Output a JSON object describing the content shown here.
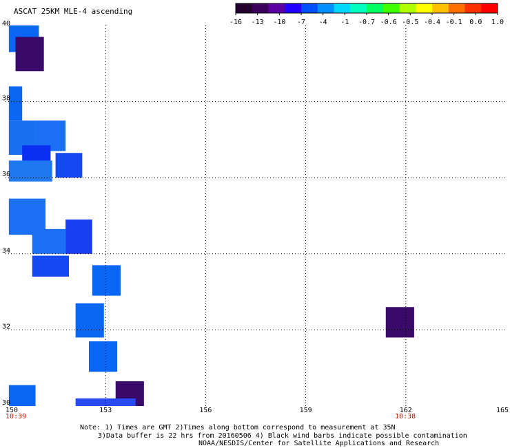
{
  "title": "ASCAT 25KM MLE-4 ascending",
  "colorbar": {
    "colors": [
      "#24002e",
      "#3a005a",
      "#5a00a0",
      "#2200ff",
      "#0050ff",
      "#0090ff",
      "#00d8ff",
      "#00ffc0",
      "#00ff60",
      "#40ff00",
      "#b0ff00",
      "#ffff00",
      "#ffc000",
      "#ff7000",
      "#ff3000",
      "#ff0000"
    ],
    "labels": [
      "-16",
      "-13",
      "-10",
      "-7",
      "-4",
      "-1",
      "-0.7",
      "-0.6",
      "-0.5",
      "-0.4",
      "-0.1",
      "0.0",
      "1.0"
    ]
  },
  "axes": {
    "lon_ticks": [
      "150",
      "153",
      "156",
      "159",
      "162",
      "165"
    ],
    "lat_ticks": [
      "40",
      "38",
      "36",
      "34",
      "32",
      "30"
    ],
    "lon_range": [
      150,
      165
    ],
    "lat_range": [
      30,
      40
    ],
    "grid": "dotted"
  },
  "times": {
    "left": "10:39",
    "right": "10:38",
    "color": "#cc1100"
  },
  "cells": [
    {
      "lon": 150.1,
      "lat": 39.3,
      "w": 0.9,
      "h": 0.7,
      "color": "#0a66f5"
    },
    {
      "lon": 150.3,
      "lat": 38.8,
      "w": 0.85,
      "h": 0.9,
      "color": "#3a0a6a"
    },
    {
      "lon": 150.1,
      "lat": 37.5,
      "w": 0.4,
      "h": 0.9,
      "color": "#0a66f5"
    },
    {
      "lon": 150.1,
      "lat": 36.6,
      "w": 0.8,
      "h": 0.9,
      "color": "#1870f0"
    },
    {
      "lon": 150.9,
      "lat": 36.7,
      "w": 0.9,
      "h": 0.8,
      "color": "#1a6ff2"
    },
    {
      "lon": 150.5,
      "lat": 36.3,
      "w": 0.85,
      "h": 0.55,
      "color": "#0a2ef2"
    },
    {
      "lon": 151.5,
      "lat": 36.0,
      "w": 0.8,
      "h": 0.65,
      "color": "#1448f0"
    },
    {
      "lon": 150.1,
      "lat": 35.9,
      "w": 1.3,
      "h": 0.55,
      "color": "#1e78f0"
    },
    {
      "lon": 150.1,
      "lat": 34.5,
      "w": 1.1,
      "h": 0.95,
      "color": "#1a6ff2"
    },
    {
      "lon": 150.8,
      "lat": 34.0,
      "w": 1.0,
      "h": 0.65,
      "color": "#1a6ff2"
    },
    {
      "lon": 151.8,
      "lat": 34.0,
      "w": 0.8,
      "h": 0.9,
      "color": "#1a3ef2"
    },
    {
      "lon": 150.8,
      "lat": 33.4,
      "w": 1.1,
      "h": 0.55,
      "color": "#1448f0"
    },
    {
      "lon": 152.6,
      "lat": 32.9,
      "w": 0.85,
      "h": 0.8,
      "color": "#0a66f5"
    },
    {
      "lon": 152.1,
      "lat": 31.8,
      "w": 0.85,
      "h": 0.9,
      "color": "#0a66f5"
    },
    {
      "lon": 152.5,
      "lat": 30.9,
      "w": 0.85,
      "h": 0.8,
      "color": "#0a66f5"
    },
    {
      "lon": 153.3,
      "lat": 30.0,
      "w": 0.85,
      "h": 0.65,
      "color": "#3a0a6a"
    },
    {
      "lon": 150.1,
      "lat": 30.0,
      "w": 0.8,
      "h": 0.55,
      "color": "#0a66f5"
    },
    {
      "lon": 152.1,
      "lat": 30.0,
      "w": 1.8,
      "h": 0.2,
      "color": "#2a4af0"
    },
    {
      "lon": 161.4,
      "lat": 31.8,
      "w": 0.85,
      "h": 0.8,
      "color": "#3a0a6a"
    }
  ],
  "note_lines": [
    "Note: 1) Times are GMT 2)Times along bottom correspond to measurement at 35N",
    "3)Data buffer is 22 hrs from 20160506 4) Black wind barbs indicate possible contamination",
    "NOAA/NESDIS/Center for Satellite Applications and Research"
  ]
}
